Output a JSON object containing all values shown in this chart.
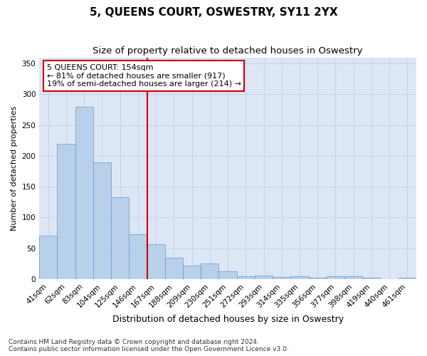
{
  "title": "5, QUEENS COURT, OSWESTRY, SY11 2YX",
  "subtitle": "Size of property relative to detached houses in Oswestry",
  "xlabel": "Distribution of detached houses by size in Oswestry",
  "ylabel": "Number of detached properties",
  "bar_labels": [
    "41sqm",
    "62sqm",
    "83sqm",
    "104sqm",
    "125sqm",
    "146sqm",
    "167sqm",
    "188sqm",
    "209sqm",
    "230sqm",
    "251sqm",
    "272sqm",
    "293sqm",
    "314sqm",
    "335sqm",
    "356sqm",
    "377sqm",
    "398sqm",
    "419sqm",
    "440sqm",
    "461sqm"
  ],
  "bar_values": [
    70,
    220,
    280,
    190,
    133,
    73,
    57,
    35,
    22,
    25,
    13,
    5,
    6,
    3,
    4,
    2,
    5,
    5,
    2,
    0,
    2
  ],
  "bar_color": "#b8d0ea",
  "bar_edge_color": "#6699cc",
  "vline_x": 5.5,
  "vline_color": "#cc0000",
  "annotation_text": "5 QUEENS COURT: 154sqm\n← 81% of detached houses are smaller (917)\n19% of semi-detached houses are larger (214) →",
  "annotation_box_color": "#ffffff",
  "annotation_box_edge_color": "#cc0000",
  "ylim": [
    0,
    360
  ],
  "yticks": [
    0,
    50,
    100,
    150,
    200,
    250,
    300,
    350
  ],
  "grid_color": "#c8d4e8",
  "bg_color": "#dce6f5",
  "footer": "Contains HM Land Registry data © Crown copyright and database right 2024.\nContains public sector information licensed under the Open Government Licence v3.0.",
  "title_fontsize": 11,
  "subtitle_fontsize": 9.5,
  "xlabel_fontsize": 9,
  "ylabel_fontsize": 8,
  "tick_fontsize": 7.5,
  "annotation_fontsize": 8,
  "footer_fontsize": 6.5
}
